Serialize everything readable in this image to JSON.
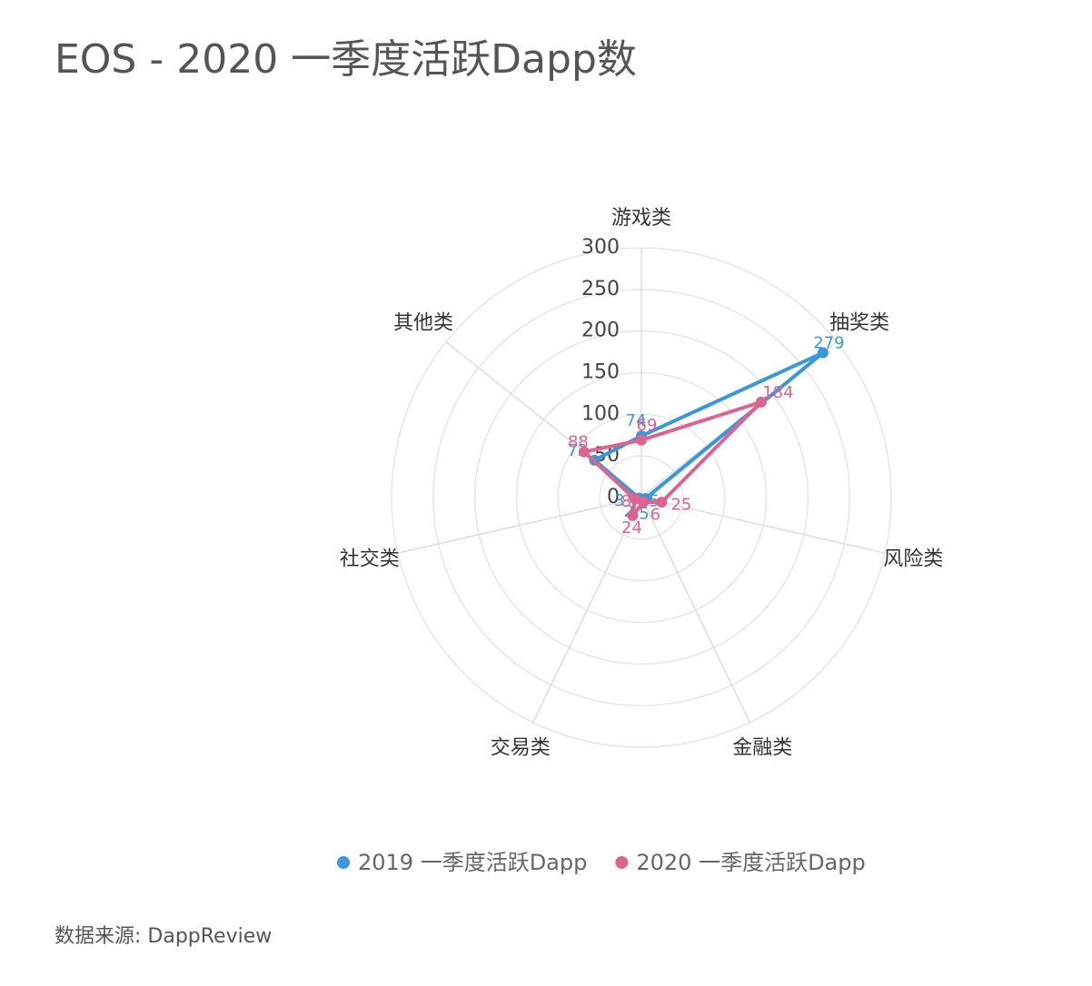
{
  "chart_data": {
    "type": "radar",
    "title": "EOS - 2020 一季度活跃Dapp数",
    "categories": [
      "游戏类",
      "抽奖类",
      "风险类",
      "金融类",
      "交易类",
      "社交类",
      "其他类"
    ],
    "series": [
      {
        "name": "2019 一季度活跃Dapp",
        "color": "#3b97dc",
        "values": [
          74,
          279,
          5,
          5,
          2,
          3,
          72
        ]
      },
      {
        "name": "2020 一季度活跃Dapp",
        "color": "#de6490",
        "values": [
          69,
          184,
          25,
          6,
          24,
          8,
          88
        ]
      }
    ],
    "ylim": [
      0,
      300
    ],
    "yticks": [
      0,
      50,
      100,
      150,
      200,
      250,
      300
    ],
    "grid": true,
    "legend": "bottom",
    "source": "数据来源: DappReview"
  }
}
